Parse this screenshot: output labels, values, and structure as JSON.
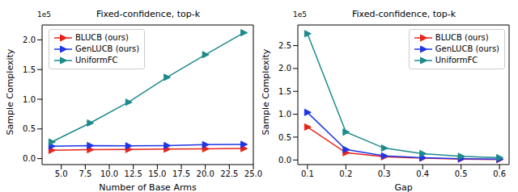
{
  "chart_data": [
    {
      "type": "line",
      "title": "Fixed-confidence, top-k",
      "x_label": "Number of Base Arms",
      "y_label": "Sample Complexity",
      "annotation": "1e5",
      "x": [
        4,
        8,
        12,
        16,
        20,
        24
      ],
      "series": [
        {
          "name": "BLUCB (ours)",
          "color": "#e8231c",
          "marker": "triangle_right",
          "values": [
            0.14,
            0.15,
            0.155,
            0.16,
            0.165,
            0.17
          ]
        },
        {
          "name": "GenLUCB (ours)",
          "color": "#1f35e6",
          "marker": "triangle_right",
          "values": [
            0.21,
            0.22,
            0.215,
            0.22,
            0.235,
            0.24
          ]
        },
        {
          "name": "UniformFC",
          "color": "#1d8a8c",
          "marker": "triangle_right",
          "values": [
            0.28,
            0.6,
            0.95,
            1.37,
            1.75,
            2.12
          ]
        }
      ],
      "xlim": [
        3,
        25
      ],
      "xticks": [
        {
          "value": 5,
          "label": "5.0"
        },
        7.5,
        {
          "value": 10,
          "label": "10.0"
        },
        12.5,
        {
          "value": 15,
          "label": "15.0"
        },
        17.5,
        {
          "value": 20,
          "label": "20.0"
        },
        22.5,
        {
          "value": 25,
          "label": "25.0"
        }
      ],
      "ylim": [
        -0.1,
        2.25
      ],
      "yticks": [
        {
          "value": 0,
          "label": "0.0"
        },
        0.5,
        {
          "value": 1,
          "label": "1.0"
        },
        1.5,
        {
          "value": 2,
          "label": "2.0"
        }
      ],
      "legend": "upper left",
      "grid": false
    },
    {
      "type": "line",
      "title": "Fixed-confidence, top-k",
      "x_label": "Gap",
      "y_label": "Sample Complexity",
      "annotation": "1e5",
      "x": [
        0.1,
        0.2,
        0.3,
        0.4,
        0.5,
        0.6
      ],
      "series": [
        {
          "name": "BLUCB (ours)",
          "color": "#e8231c",
          "marker": "triangle_right",
          "values": [
            0.72,
            0.16,
            0.07,
            0.04,
            0.02,
            0.01
          ]
        },
        {
          "name": "GenLUCB (ours)",
          "color": "#1f35e6",
          "marker": "triangle_right",
          "values": [
            1.04,
            0.23,
            0.09,
            0.05,
            0.03,
            0.02
          ]
        },
        {
          "name": "UniformFC",
          "color": "#1d8a8c",
          "marker": "triangle_right",
          "values": [
            2.76,
            0.61,
            0.26,
            0.14,
            0.08,
            0.05
          ]
        }
      ],
      "xlim": [
        0.075,
        0.625
      ],
      "xticks": [
        0.1,
        0.2,
        0.3,
        0.4,
        0.5,
        0.6
      ],
      "ylim": [
        -0.1,
        2.95
      ],
      "yticks": [
        {
          "value": 0,
          "label": "0.0"
        },
        0.5,
        {
          "value": 1,
          "label": "1.0"
        },
        1.5,
        {
          "value": 2,
          "label": "2.0"
        },
        2.5
      ],
      "legend": "upper right",
      "grid": false
    }
  ]
}
